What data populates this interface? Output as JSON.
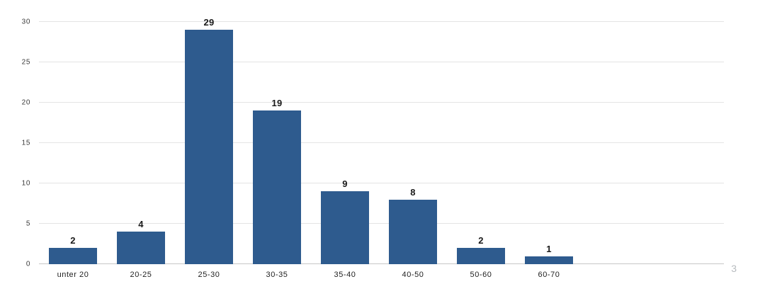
{
  "page": {
    "background": "#ffffff",
    "page_number": "3"
  },
  "chart_data": {
    "type": "bar",
    "title": "",
    "xlabel": "",
    "ylabel": "",
    "categories": [
      "unter 20",
      "20-25",
      "25-30",
      "30-35",
      "35-40",
      "40-50",
      "50-60",
      "60-70"
    ],
    "values": [
      2,
      4,
      29,
      19,
      9,
      8,
      2,
      1
    ],
    "ylim": [
      0,
      30
    ],
    "yticks": [
      0,
      5,
      10,
      15,
      20,
      25,
      30
    ],
    "grid": true,
    "legend": "none",
    "bar_color": "#2E5B8E",
    "value_label_color": "#1a1a1a",
    "tick_label_color": "#3b3b3b",
    "category_label_color": "#222222",
    "gridline_color": "#e4e4e4",
    "axis_line_color": "#c7c7c7",
    "page_number_color": "#b7bbbf"
  }
}
